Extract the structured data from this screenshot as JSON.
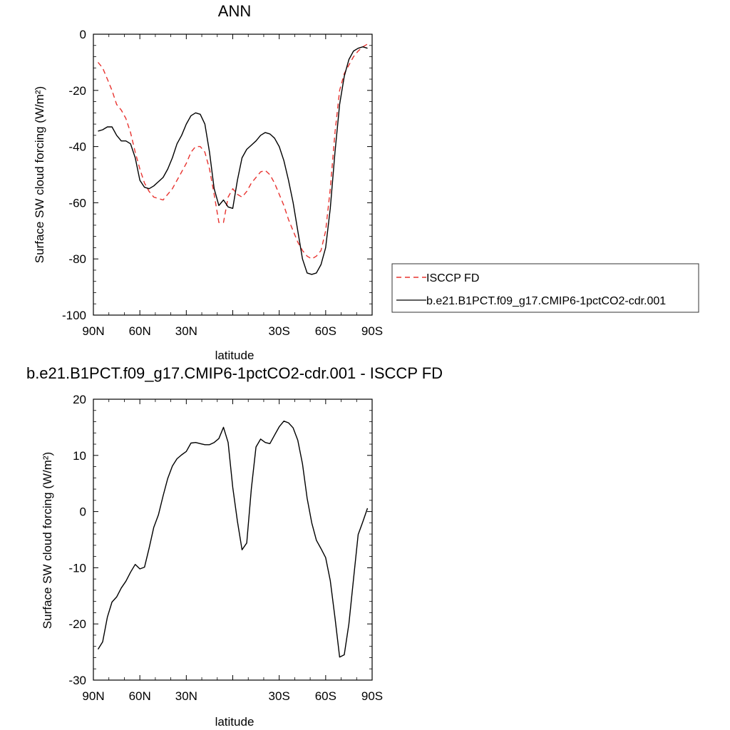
{
  "chart_data": [
    {
      "type": "line",
      "title": "ANN",
      "xlabel": "latitude",
      "ylabel": "Surface SW cloud forcing (W/m²)",
      "xlim": [
        90,
        -90
      ],
      "ylim": [
        -100,
        0
      ],
      "xticks": [
        90,
        60,
        30,
        0,
        -30,
        -60,
        -90
      ],
      "xtick_labels": [
        "90N",
        "60N",
        "30N",
        "",
        "30S",
        "60S",
        "90S"
      ],
      "yticks": [
        0,
        -20,
        -40,
        -60,
        -80,
        -100
      ],
      "ytick_labels": [
        "0",
        "-20",
        "-40",
        "-60",
        "-80",
        "-100"
      ],
      "legend_position": "right",
      "series": [
        {
          "name": "ISCCP FD",
          "color": "#e8332f",
          "dash": true,
          "x": [
            87,
            84,
            81,
            78,
            75,
            72,
            69,
            66,
            63,
            60,
            57,
            54,
            51,
            48,
            45,
            42,
            39,
            36,
            33,
            30,
            27,
            24,
            21,
            18,
            15,
            12,
            9,
            6,
            3,
            0,
            -3,
            -6,
            -9,
            -12,
            -15,
            -18,
            -21,
            -24,
            -27,
            -30,
            -33,
            -36,
            -39,
            -42,
            -45,
            -48,
            -51,
            -54,
            -57,
            -60,
            -63,
            -66,
            -69,
            -72,
            -75,
            -78,
            -81,
            -84,
            -87
          ],
          "y": [
            -10,
            -12,
            -16,
            -20,
            -25,
            -27,
            -30,
            -35,
            -42,
            -48,
            -53,
            -56,
            -58,
            -58.5,
            -59,
            -57,
            -55,
            -52,
            -49,
            -46,
            -42,
            -40,
            -40,
            -42,
            -48,
            -57,
            -67,
            -67,
            -58,
            -55,
            -57,
            -58,
            -56,
            -53,
            -51,
            -49,
            -48.5,
            -50,
            -53,
            -57,
            -61,
            -66,
            -70,
            -74,
            -77,
            -79,
            -80,
            -79,
            -77,
            -70,
            -55,
            -35,
            -20,
            -14,
            -11,
            -8,
            -6,
            -4.5,
            -3.5
          ]
        },
        {
          "name": "b.e21.B1PCT.f09_g17.CMIP6-1pctCO2-cdr.001",
          "color": "#000000",
          "dash": false,
          "x": [
            87,
            84,
            81,
            78,
            75,
            72,
            69,
            66,
            63,
            60,
            57,
            54,
            51,
            48,
            45,
            42,
            39,
            36,
            33,
            30,
            27,
            24,
            21,
            18,
            15,
            12,
            9,
            6,
            3,
            0,
            -3,
            -6,
            -9,
            -12,
            -15,
            -18,
            -21,
            -24,
            -27,
            -30,
            -33,
            -36,
            -39,
            -42,
            -45,
            -48,
            -51,
            -54,
            -57,
            -60,
            -63,
            -66,
            -69,
            -72,
            -75,
            -78,
            -81,
            -84,
            -87
          ],
          "y": [
            -34.5,
            -34,
            -33,
            -33,
            -36,
            -38,
            -38,
            -39,
            -44,
            -52,
            -54.5,
            -55,
            -54,
            -52.5,
            -51,
            -48,
            -44,
            -39,
            -36,
            -32,
            -29,
            -28,
            -28.5,
            -32,
            -42,
            -55,
            -61,
            -59,
            -61.5,
            -62,
            -52,
            -44,
            -41,
            -39.5,
            -38,
            -36,
            -35,
            -35.5,
            -37,
            -40,
            -45,
            -52,
            -60,
            -70,
            -80,
            -85,
            -85.5,
            -85,
            -82,
            -76,
            -62,
            -42,
            -25,
            -15,
            -9,
            -6,
            -5,
            -4.5,
            -5
          ]
        }
      ]
    },
    {
      "type": "line",
      "title": "b.e21.B1PCT.f09_g17.CMIP6-1pctCO2-cdr.001 - ISCCP FD",
      "xlabel": "latitude",
      "ylabel": "Surface SW cloud forcing (W/m²)",
      "xlim": [
        90,
        -90
      ],
      "ylim": [
        -30,
        20
      ],
      "xticks": [
        90,
        60,
        30,
        0,
        -30,
        -60,
        -90
      ],
      "xtick_labels": [
        "90N",
        "60N",
        "30N",
        "",
        "30S",
        "60S",
        "90S"
      ],
      "yticks": [
        20,
        10,
        0,
        -10,
        -20,
        -30
      ],
      "ytick_labels": [
        "20",
        "10",
        "0",
        "-10",
        "-20",
        "-30"
      ],
      "series": [
        {
          "color": "#000000",
          "dash": false,
          "x": [
            87,
            84,
            81,
            78,
            75,
            72,
            69,
            66,
            63,
            60,
            57,
            54,
            51,
            48,
            45,
            42,
            39,
            36,
            33,
            30,
            27,
            24,
            21,
            18,
            15,
            12,
            9,
            6,
            3,
            0,
            -3,
            -6,
            -9,
            -12,
            -15,
            -18,
            -21,
            -24,
            -27,
            -30,
            -33,
            -36,
            -39,
            -42,
            -45,
            -48,
            -51,
            -54,
            -57,
            -60,
            -63,
            -66,
            -69,
            -72,
            -75,
            -78,
            -81,
            -84,
            -87
          ],
          "y": [
            -24.5,
            -23.2,
            -18.8,
            -16.1,
            -15.2,
            -13.6,
            -12.4,
            -10.8,
            -9.4,
            -10.2,
            -9.9,
            -6.5,
            -2.8,
            -0.6,
            2.8,
            5.9,
            8.1,
            9.4,
            10.1,
            10.7,
            12.2,
            12.3,
            12.1,
            11.9,
            11.9,
            12.3,
            13.0,
            15.0,
            12.3,
            4.3,
            -1.7,
            -6.8,
            -5.6,
            4.1,
            11.5,
            12.9,
            12.3,
            12.1,
            13.6,
            15.1,
            16.1,
            15.8,
            14.9,
            12.7,
            8.5,
            2.4,
            -2.0,
            -5.1,
            -6.6,
            -8.2,
            -12.3,
            -18.9,
            -25.9,
            -25.5,
            -20.0,
            -12.0,
            -4.1,
            -1.8,
            0.6
          ]
        }
      ]
    }
  ]
}
